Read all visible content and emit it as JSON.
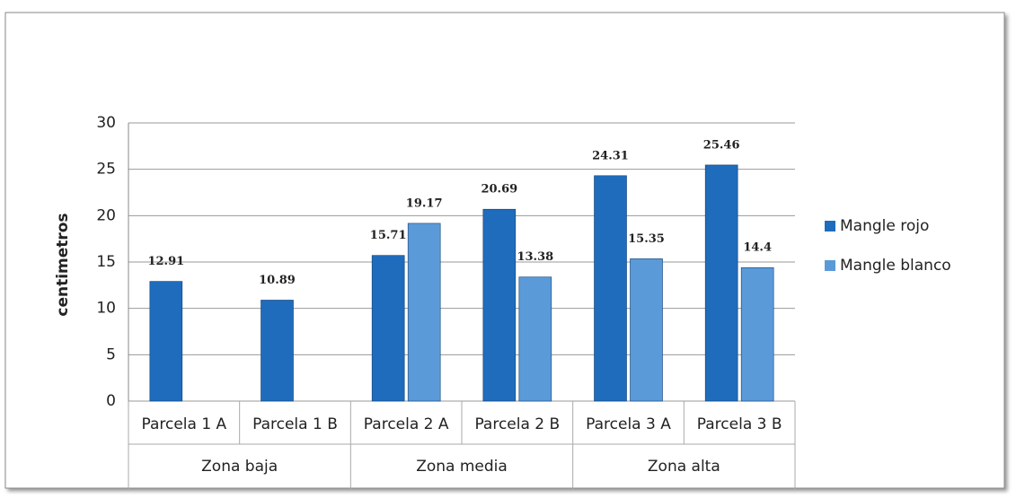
{
  "chart_data": {
    "type": "bar",
    "y_label": "centimetros",
    "categories": [
      "Parcela 1 A",
      "Parcela 1 B",
      "Parcela 2 A",
      "Parcela 2 B",
      "Parcela 3 A",
      "Parcela 3 B"
    ],
    "groups": [
      "Zona baja",
      "Zona media",
      "Zona alta"
    ],
    "series": [
      {
        "name": "Mangle rojo",
        "color": "#1f6cbd",
        "values": [
          12.91,
          10.89,
          15.71,
          20.69,
          24.31,
          25.46
        ]
      },
      {
        "name": "Mangle blanco",
        "color": "#5a9ad8",
        "values": [
          null,
          null,
          19.17,
          13.38,
          15.35,
          14.4
        ]
      }
    ],
    "ylim": [
      0,
      30
    ],
    "yticks": [
      0,
      5,
      10,
      15,
      20,
      25,
      30
    ],
    "grid": true,
    "legend": "right"
  }
}
